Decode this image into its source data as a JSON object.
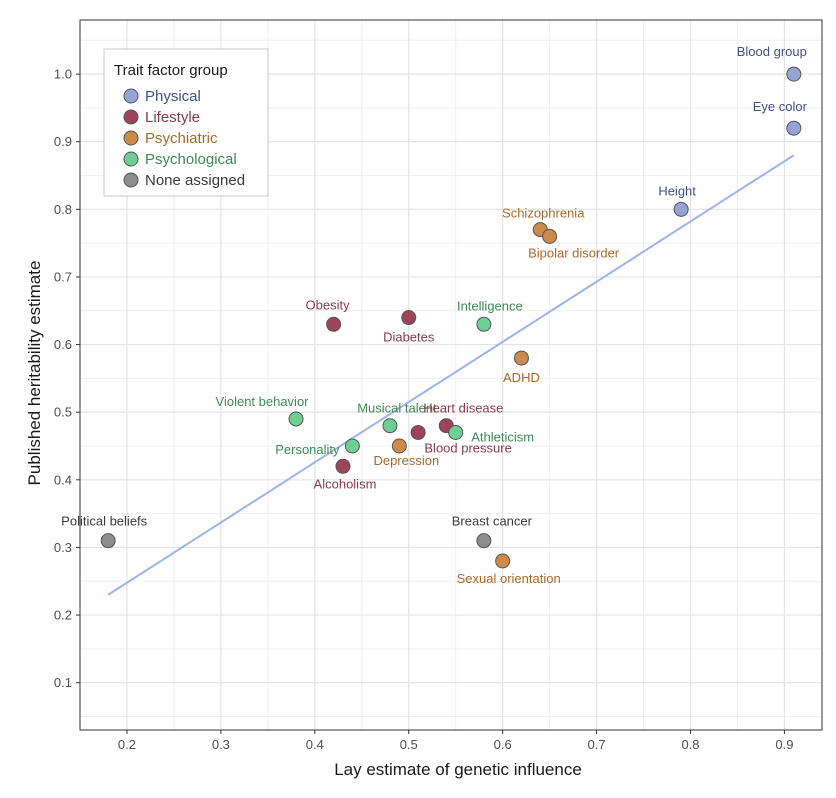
{
  "chart_data": {
    "type": "scatter",
    "title": "",
    "xlabel": "Lay estimate of genetic influence",
    "ylabel": "Published heritability estimate",
    "xlim": [
      0.15,
      0.94
    ],
    "ylim": [
      0.03,
      1.08
    ],
    "xticks": [
      0.2,
      0.3,
      0.4,
      0.5,
      0.6,
      0.7,
      0.8,
      0.9
    ],
    "xtick_labels": [
      "0.2",
      "0.3",
      "0.4",
      "0.5",
      "0.6",
      "0.7",
      "0.8",
      "0.9"
    ],
    "yticks": [
      0.1,
      0.2,
      0.3,
      0.4,
      0.5,
      0.6,
      0.7,
      0.8,
      0.9,
      1.0
    ],
    "ytick_labels": [
      "0.1",
      "0.2",
      "0.3",
      "0.4",
      "0.5",
      "0.6",
      "0.7",
      "0.8",
      "0.9",
      "1.0"
    ],
    "grid": true,
    "legend": {
      "title": "Trait factor group",
      "placement": "top-left",
      "entries": [
        {
          "group": "Physical",
          "label": "Physical"
        },
        {
          "group": "Lifestyle",
          "label": "Lifestyle"
        },
        {
          "group": "Psychiatric",
          "label": "Psychiatric"
        },
        {
          "group": "Psychological",
          "label": "Psychological"
        },
        {
          "group": "None assigned",
          "label": "None assigned"
        }
      ]
    },
    "group_colors": {
      "Physical": {
        "fill": "#96a3d6",
        "text": "#3f4f8f"
      },
      "Lifestyle": {
        "fill": "#9e4459",
        "text": "#8a3a4e"
      },
      "Psychiatric": {
        "fill": "#cd8a4a",
        "text": "#a8682a"
      },
      "Psychological": {
        "fill": "#6dcf93",
        "text": "#3c8a55"
      },
      "None assigned": {
        "fill": "#8c8c8c",
        "text": "#3a3a3a"
      }
    },
    "fit_line": {
      "x": [
        0.18,
        0.91
      ],
      "y": [
        0.23,
        0.88
      ],
      "color": "#9db3ef"
    },
    "points": [
      {
        "label": "Blood group",
        "x": 0.91,
        "y": 1.0,
        "group": "Physical"
      },
      {
        "label": "Eye color",
        "x": 0.91,
        "y": 0.92,
        "group": "Physical"
      },
      {
        "label": "Height",
        "x": 0.79,
        "y": 0.8,
        "group": "Physical"
      },
      {
        "label": "Schizophrenia",
        "x": 0.64,
        "y": 0.77,
        "group": "Psychiatric"
      },
      {
        "label": "Bipolar disorder",
        "x": 0.65,
        "y": 0.76,
        "group": "Psychiatric"
      },
      {
        "label": "Obesity",
        "x": 0.42,
        "y": 0.63,
        "group": "Lifestyle"
      },
      {
        "label": "Diabetes",
        "x": 0.5,
        "y": 0.64,
        "group": "Lifestyle"
      },
      {
        "label": "Intelligence",
        "x": 0.58,
        "y": 0.63,
        "group": "Psychological"
      },
      {
        "label": "ADHD",
        "x": 0.62,
        "y": 0.58,
        "group": "Psychiatric"
      },
      {
        "label": "Violent behavior",
        "x": 0.38,
        "y": 0.49,
        "group": "Psychological"
      },
      {
        "label": "Musical talent",
        "x": 0.48,
        "y": 0.48,
        "group": "Psychological"
      },
      {
        "label": "Heart disease",
        "x": 0.54,
        "y": 0.48,
        "group": "Lifestyle"
      },
      {
        "label": "Athleticism",
        "x": 0.55,
        "y": 0.47,
        "group": "Psychological"
      },
      {
        "label": "Blood pressure",
        "x": 0.51,
        "y": 0.47,
        "group": "Lifestyle"
      },
      {
        "label": "Personality",
        "x": 0.44,
        "y": 0.45,
        "group": "Psychological"
      },
      {
        "label": "Depression",
        "x": 0.49,
        "y": 0.45,
        "group": "Psychiatric"
      },
      {
        "label": "Alcoholism",
        "x": 0.43,
        "y": 0.42,
        "group": "Lifestyle"
      },
      {
        "label": "Political beliefs",
        "x": 0.18,
        "y": 0.31,
        "group": "None assigned"
      },
      {
        "label": "Breast cancer",
        "x": 0.58,
        "y": 0.31,
        "group": "None assigned"
      },
      {
        "label": "Sexual orientation",
        "x": 0.6,
        "y": 0.28,
        "group": "Psychiatric"
      }
    ]
  }
}
